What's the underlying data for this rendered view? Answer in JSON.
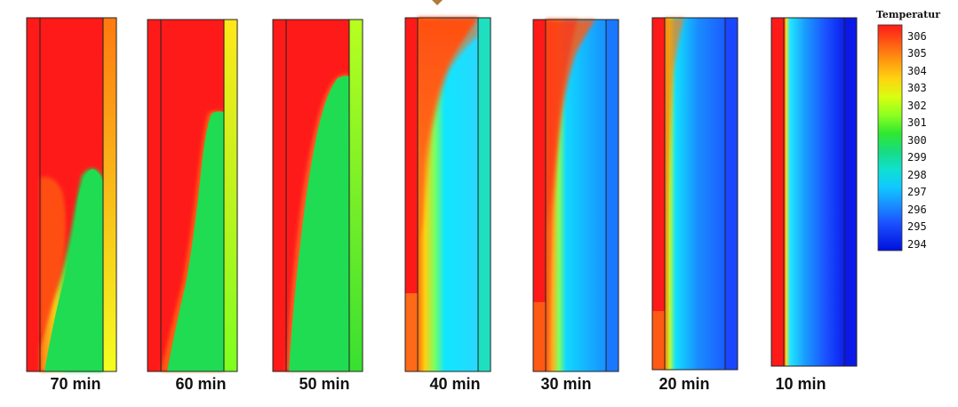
{
  "panels": [
    {
      "label": "70 min"
    },
    {
      "label": "60 min"
    },
    {
      "label": "50 min"
    },
    {
      "label": "40 min"
    },
    {
      "label": "30 min"
    },
    {
      "label": "20 min"
    },
    {
      "label": "10 min"
    }
  ],
  "legend": {
    "title": "Temperatur",
    "ticks": [
      "306",
      "305",
      "304",
      "303",
      "302",
      "301",
      "300",
      "299",
      "298",
      "297",
      "296",
      "295",
      "294"
    ]
  },
  "colors": {
    "hot": "#ff1a1a",
    "warm_orange": "#ff7a10",
    "yellow": "#f0ff10",
    "green": "#18dc4a",
    "cyan": "#10e0ff",
    "blue": "#1a70ff",
    "cold": "#0010dd",
    "frame": "#222222",
    "arrow": "#b07a3a"
  }
}
